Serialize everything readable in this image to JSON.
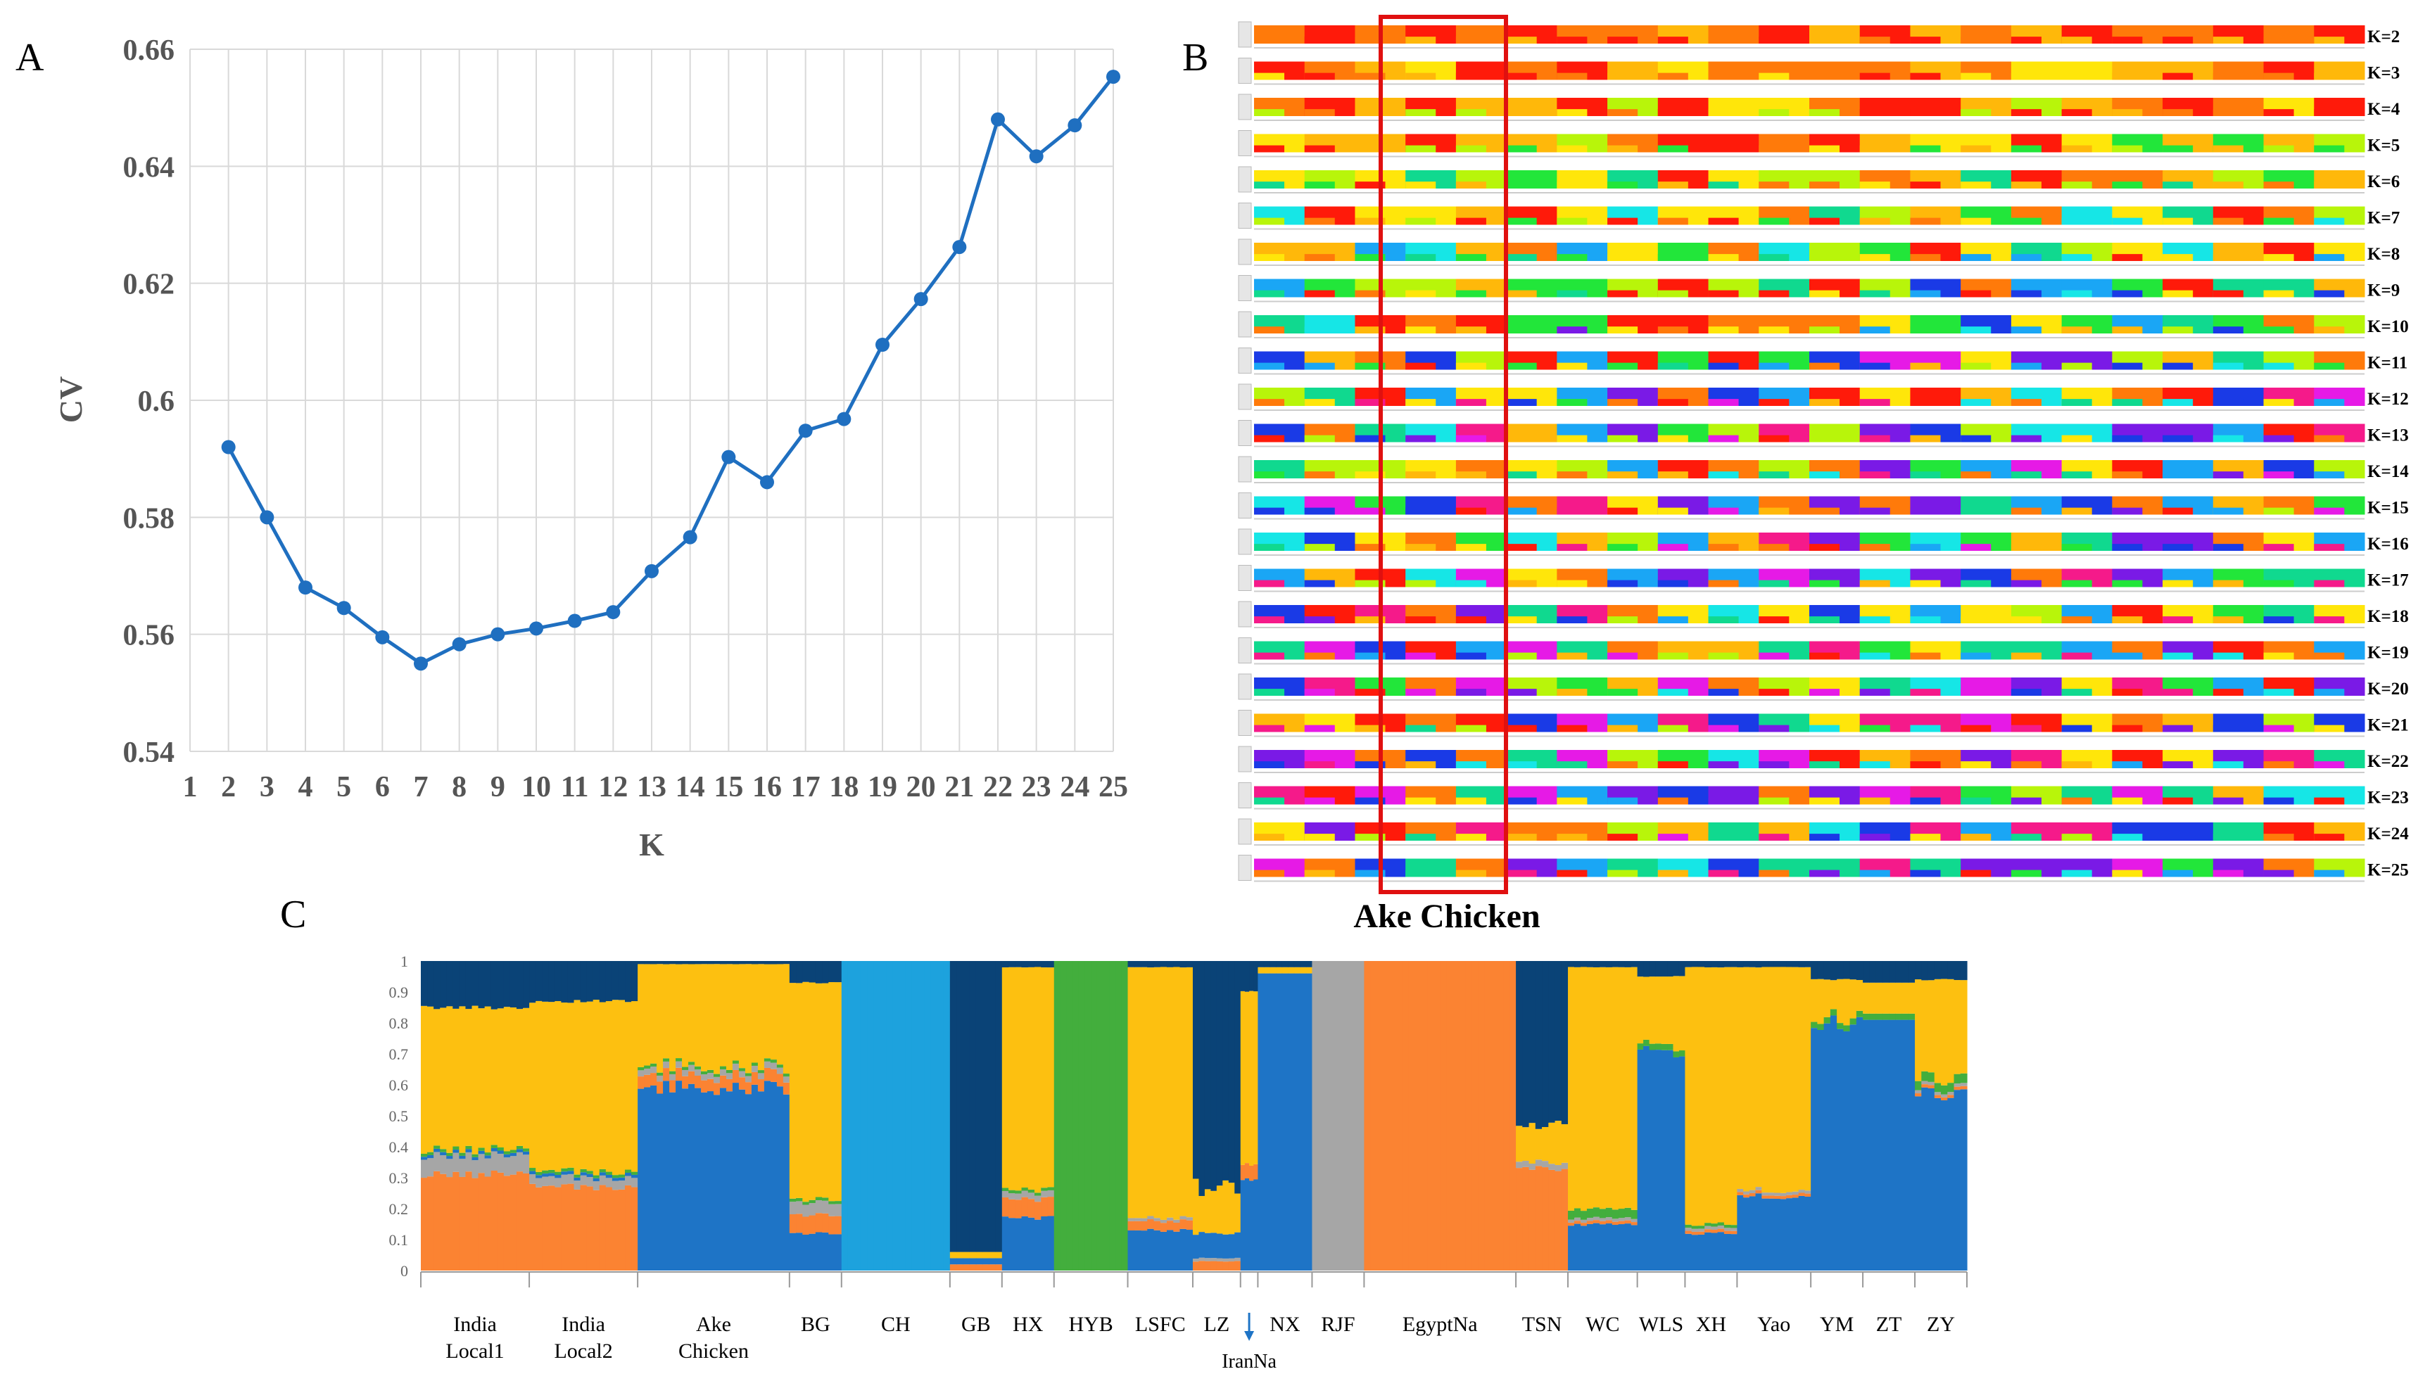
{
  "panels": {
    "a": "A",
    "b": "B",
    "c": "C"
  },
  "colors": {
    "line": "#1f6fc0",
    "grid": "#d9d9d9",
    "axis_text": "#555555",
    "red_box": "#e01010",
    "ancestry": {
      "navy": "#0a4377",
      "orange": "#fb8332",
      "gray": "#a6a6a6",
      "gold": "#fdc010",
      "blue": "#1e74c6",
      "light_blue": "#1da2dd",
      "green": "#43ae3d"
    },
    "structure_palette": [
      "#ff1a0a",
      "#ff7a0a",
      "#ffb80a",
      "#ffe60a",
      "#b8f50a",
      "#22e63a",
      "#10d98f",
      "#16e6e6",
      "#1aa6f5",
      "#1a3ae6",
      "#7a1ae6",
      "#e61ae6",
      "#f51a8a"
    ]
  },
  "chart_data": [
    {
      "type": "line",
      "panel": "A",
      "xlabel": "K",
      "ylabel": "CV",
      "x_ticks": [
        "1",
        "2",
        "3",
        "4",
        "5",
        "6",
        "7",
        "8",
        "9",
        "10",
        "11",
        "12",
        "13",
        "14",
        "15",
        "16",
        "17",
        "18",
        "19",
        "20",
        "21",
        "22",
        "23",
        "24",
        "25"
      ],
      "y_ticks": [
        "0.54",
        "0.56",
        "0.58",
        "0.6",
        "0.62",
        "0.64",
        "0.66"
      ],
      "ylim": [
        0.54,
        0.66
      ],
      "xlim": [
        1,
        25
      ],
      "grid": true,
      "x": [
        2,
        3,
        4,
        5,
        6,
        7,
        8,
        9,
        10,
        11,
        12,
        13,
        14,
        15,
        16,
        17,
        18,
        19,
        20,
        21,
        22,
        23,
        24,
        25
      ],
      "y": [
        0.592,
        0.58,
        0.568,
        0.5645,
        0.5595,
        0.555,
        0.5583,
        0.56,
        0.561,
        0.5623,
        0.5638,
        0.5708,
        0.5766,
        0.5903,
        0.586,
        0.5948,
        0.5968,
        0.6095,
        0.6173,
        0.6262,
        0.648,
        0.6417,
        0.647,
        0.6553
      ]
    },
    {
      "type": "heatmap",
      "panel": "B",
      "row_labels": [
        "K=2",
        "K=3",
        "K=4",
        "K=5",
        "K=6",
        "K=7",
        "K=8",
        "K=9",
        "K=10",
        "K=11",
        "K=12",
        "K=13",
        "K=14",
        "K=15",
        "K=16",
        "K=17",
        "K=18",
        "K=19",
        "K=20",
        "K=21",
        "K=22",
        "K=23",
        "K=24",
        "K=25"
      ],
      "k_values": [
        2,
        3,
        4,
        5,
        6,
        7,
        8,
        9,
        10,
        11,
        12,
        13,
        14,
        15,
        16,
        17,
        18,
        19,
        20,
        21,
        22,
        23,
        24,
        25
      ],
      "highlight_label": "Ake Chicken"
    },
    {
      "type": "bar",
      "panel": "C",
      "stacked": true,
      "ylim": [
        0,
        1
      ],
      "y_ticks": [
        "0",
        "0.1",
        "0.2",
        "0.3",
        "0.4",
        "0.5",
        "0.6",
        "0.7",
        "0.8",
        "0.9",
        "1"
      ],
      "populations": [
        {
          "label": "India Local1",
          "weight": 5,
          "navy": 0.15,
          "orange": 0.31,
          "gray": 0.06,
          "gold": 0.46,
          "blue": 0.01,
          "light_blue": 0,
          "green": 0.01
        },
        {
          "label": "India Local2",
          "weight": 5,
          "navy": 0.13,
          "orange": 0.27,
          "gray": 0.03,
          "gold": 0.55,
          "blue": 0.01,
          "light_blue": 0,
          "green": 0.01
        },
        {
          "label": "Ake Chicken",
          "weight": 7,
          "navy": 0.01,
          "orange": 0.04,
          "gray": 0.02,
          "gold": 0.33,
          "blue": 0.59,
          "light_blue": 0,
          "green": 0.01
        },
        {
          "label": "BG",
          "weight": 2.4,
          "navy": 0.07,
          "orange": 0.06,
          "gray": 0.04,
          "gold": 0.7,
          "blue": 0.12,
          "light_blue": 0,
          "green": 0.01
        },
        {
          "label": "CH",
          "weight": 5,
          "navy": 0,
          "orange": 0,
          "gray": 0,
          "gold": 0,
          "blue": 0,
          "light_blue": 1,
          "green": 0
        },
        {
          "label": "GB",
          "weight": 2.4,
          "navy": 0.94,
          "orange": 0.02,
          "gray": 0,
          "gold": 0.02,
          "blue": 0.02,
          "light_blue": 0,
          "green": 0
        },
        {
          "label": "HX",
          "weight": 2.4,
          "navy": 0.02,
          "orange": 0.06,
          "gray": 0.02,
          "gold": 0.72,
          "blue": 0.17,
          "light_blue": 0,
          "green": 0.01
        },
        {
          "label": "HYB",
          "weight": 3.4,
          "navy": 0,
          "orange": 0,
          "gray": 0,
          "gold": 0,
          "blue": 0,
          "light_blue": 0,
          "green": 1
        },
        {
          "label": "LSFC",
          "weight": 3,
          "navy": 0.02,
          "orange": 0.03,
          "gray": 0.01,
          "gold": 0.81,
          "blue": 0.13,
          "light_blue": 0,
          "green": 0
        },
        {
          "label": "LZ",
          "weight": 2.2,
          "navy": 0.73,
          "orange": 0.03,
          "gray": 0.01,
          "gold": 0.15,
          "blue": 0.08,
          "light_blue": 0,
          "green": 0
        },
        {
          "label": "IranNa",
          "weight": 0.8,
          "navy": 0.1,
          "orange": 0.05,
          "gray": 0,
          "gold": 0.55,
          "blue": 0.3,
          "light_blue": 0,
          "green": 0
        },
        {
          "label": "NX",
          "weight": 2.5,
          "navy": 0.02,
          "orange": 0,
          "gray": 0,
          "gold": 0.02,
          "blue": 0.96,
          "light_blue": 0,
          "green": 0
        },
        {
          "label": "RJF",
          "weight": 2.4,
          "navy": 0,
          "orange": 0,
          "gray": 1,
          "gold": 0,
          "blue": 0,
          "light_blue": 0,
          "green": 0
        },
        {
          "label": "EgyptNa",
          "weight": 7,
          "navy": 0,
          "orange": 1,
          "gray": 0,
          "gold": 0,
          "blue": 0,
          "light_blue": 0,
          "green": 0
        },
        {
          "label": "TSN",
          "weight": 2.4,
          "navy": 0.53,
          "orange": 0.33,
          "gray": 0.02,
          "gold": 0.12,
          "blue": 0,
          "light_blue": 0,
          "green": 0
        },
        {
          "label": "WC",
          "weight": 3.2,
          "navy": 0.02,
          "orange": 0.01,
          "gray": 0.01,
          "gold": 0.78,
          "blue": 0.15,
          "light_blue": 0,
          "green": 0.03
        },
        {
          "label": "WLS",
          "weight": 2.2,
          "navy": 0.05,
          "orange": 0,
          "gray": 0,
          "gold": 0.22,
          "blue": 0.71,
          "light_blue": 0,
          "green": 0.02
        },
        {
          "label": "XH",
          "weight": 2.4,
          "navy": 0.02,
          "orange": 0.01,
          "gray": 0.01,
          "gold": 0.83,
          "blue": 0.12,
          "light_blue": 0,
          "green": 0.01
        },
        {
          "label": "Yao",
          "weight": 3.4,
          "navy": 0.02,
          "orange": 0.01,
          "gray": 0.01,
          "gold": 0.72,
          "blue": 0.24,
          "light_blue": 0,
          "green": 0
        },
        {
          "label": "YM",
          "weight": 2.4,
          "navy": 0.06,
          "orange": 0,
          "gray": 0,
          "gold": 0.12,
          "blue": 0.8,
          "light_blue": 0,
          "green": 0.02
        },
        {
          "label": "ZT",
          "weight": 2.4,
          "navy": 0.07,
          "orange": 0,
          "gray": 0,
          "gold": 0.1,
          "blue": 0.81,
          "light_blue": 0,
          "green": 0.02
        },
        {
          "label": "ZY",
          "weight": 2.4,
          "navy": 0.06,
          "orange": 0.01,
          "gray": 0.01,
          "gold": 0.32,
          "blue": 0.57,
          "light_blue": 0,
          "green": 0.03
        }
      ]
    }
  ]
}
